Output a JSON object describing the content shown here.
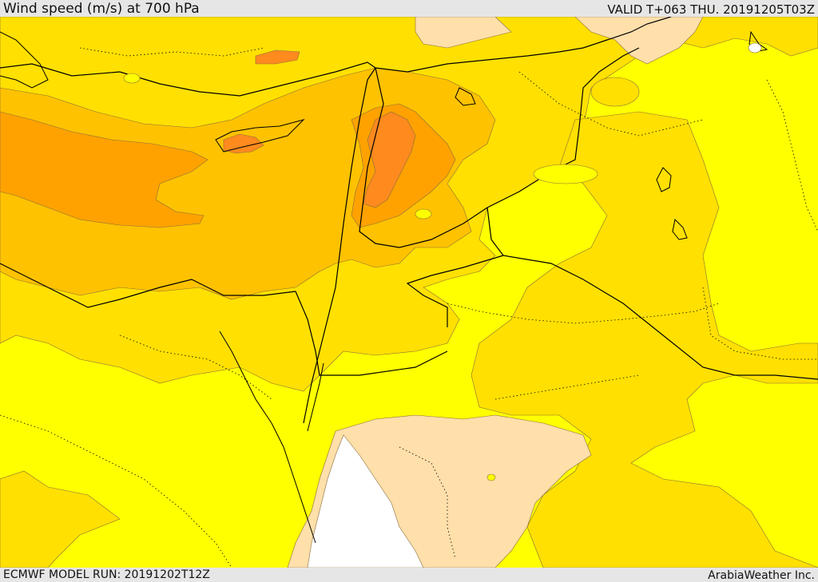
{
  "header": {
    "title": "Wind speed (m/s) at 700 hPa",
    "valid_time": "VALID T+063 THU. 20191205T03Z"
  },
  "footer": {
    "model_run": "ECMWF MODEL RUN: 20191202T12Z",
    "credit": "ArabiaWeather Inc."
  },
  "map": {
    "variable": "Wind speed",
    "units": "m/s",
    "pressure_level_hpa": 700,
    "colors": {
      "calm_white": "#ffffff",
      "light_tan": "#ffdfaa",
      "yellow": "#ffff00",
      "gold": "#ffe000",
      "amber": "#ffc200",
      "orange": "#ffa200",
      "dark_orange": "#ff8a1e",
      "border": "#000000"
    }
  }
}
